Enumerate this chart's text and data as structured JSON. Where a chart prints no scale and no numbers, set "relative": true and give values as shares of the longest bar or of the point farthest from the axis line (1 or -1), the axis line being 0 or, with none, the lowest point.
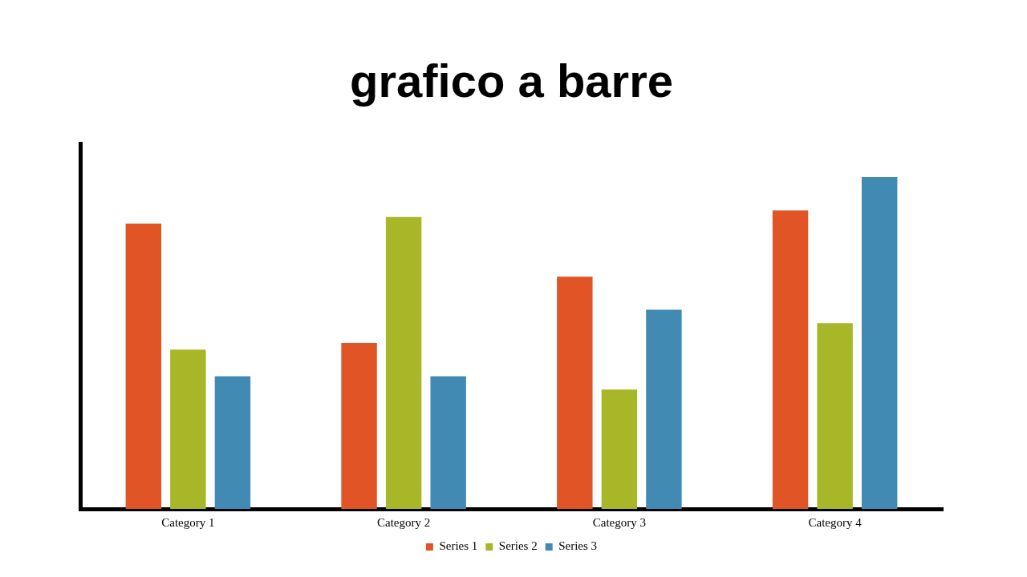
{
  "chart_data": {
    "type": "bar",
    "title": "grafico a barre",
    "relative": true,
    "categories": [
      "Category 1",
      "Category 2",
      "Category 3",
      "Category 4"
    ],
    "series": [
      {
        "name": "Series 1",
        "color": "#e05426",
        "values": [
          0.86,
          0.5,
          0.7,
          0.9
        ]
      },
      {
        "name": "Series 2",
        "color": "#a8b728",
        "values": [
          0.48,
          0.88,
          0.36,
          0.56
        ]
      },
      {
        "name": "Series 3",
        "color": "#418ab3",
        "values": [
          0.4,
          0.4,
          0.6,
          1
        ]
      }
    ],
    "legend": "bottom",
    "grid": false
  }
}
